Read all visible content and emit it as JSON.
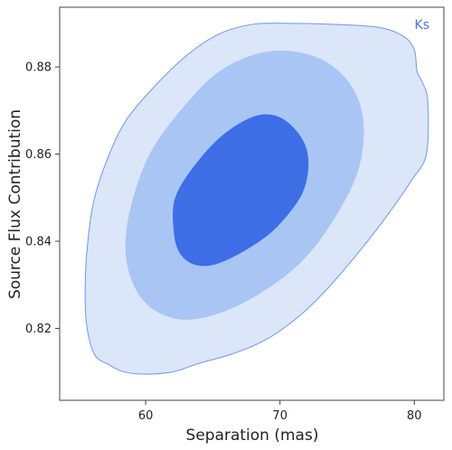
{
  "chart_data": {
    "type": "contour",
    "xlabel": "Separation (mas)",
    "ylabel": "Source Flux Contribution",
    "xlim": [
      53.6,
      82.2
    ],
    "ylim": [
      0.8035,
      0.8937
    ],
    "xticks": [
      60,
      70,
      80
    ],
    "yticks": [
      0.82,
      0.84,
      0.86,
      0.88
    ],
    "grid": false,
    "legend": {
      "position": "top-right",
      "label": "Ks"
    },
    "colors": {
      "outer_fill": "#dbe6f9",
      "middle_fill": "#a9c5f3",
      "inner_fill": "#3d6ee6",
      "outline": "#6f97e8",
      "label": "#4a74d6",
      "axis": "#444444"
    },
    "contours": [
      {
        "level": "outer",
        "points": [
          [
            57.3,
            0.8116
          ],
          [
            56.2,
            0.814
          ],
          [
            55.6,
            0.821
          ],
          [
            55.5,
            0.83
          ],
          [
            55.7,
            0.84
          ],
          [
            56.2,
            0.85
          ],
          [
            57.3,
            0.86
          ],
          [
            58.6,
            0.868
          ],
          [
            60.8,
            0.876
          ],
          [
            63.2,
            0.883
          ],
          [
            65.5,
            0.8876
          ],
          [
            68.0,
            0.8898
          ],
          [
            71.0,
            0.89
          ],
          [
            74.5,
            0.8897
          ],
          [
            77.5,
            0.889
          ],
          [
            79.2,
            0.887
          ],
          [
            80.0,
            0.884
          ],
          [
            80.2,
            0.879
          ],
          [
            80.6,
            0.8765
          ],
          [
            81.0,
            0.872
          ],
          [
            80.9,
            0.86
          ],
          [
            79.8,
            0.854
          ],
          [
            78.0,
            0.846
          ],
          [
            76.0,
            0.838
          ],
          [
            73.5,
            0.829
          ],
          [
            71.5,
            0.823
          ],
          [
            69.0,
            0.8175
          ],
          [
            66.5,
            0.8142
          ],
          [
            64.0,
            0.812
          ],
          [
            62.0,
            0.81
          ],
          [
            59.8,
            0.8095
          ],
          [
            58.3,
            0.8101
          ]
        ]
      },
      {
        "level": "middle",
        "points": [
          [
            58.5,
            0.838
          ],
          [
            58.9,
            0.848
          ],
          [
            60.3,
            0.86
          ],
          [
            62.6,
            0.87
          ],
          [
            65.5,
            0.879
          ],
          [
            69.0,
            0.8835
          ],
          [
            72.5,
            0.8825
          ],
          [
            75.0,
            0.877
          ],
          [
            76.2,
            0.868
          ],
          [
            75.8,
            0.856
          ],
          [
            73.8,
            0.844
          ],
          [
            71.5,
            0.835
          ],
          [
            68.5,
            0.828
          ],
          [
            65.5,
            0.8235
          ],
          [
            62.8,
            0.822
          ],
          [
            60.5,
            0.8245
          ],
          [
            59.1,
            0.83
          ]
        ]
      },
      {
        "level": "inner",
        "points": [
          [
            62.1,
            0.842
          ],
          [
            62.2,
            0.85
          ],
          [
            63.8,
            0.858
          ],
          [
            66.0,
            0.865
          ],
          [
            68.5,
            0.869
          ],
          [
            70.5,
            0.8675
          ],
          [
            72.0,
            0.861
          ],
          [
            71.8,
            0.852
          ],
          [
            70.0,
            0.844
          ],
          [
            68.0,
            0.839
          ],
          [
            65.5,
            0.835
          ],
          [
            63.8,
            0.8345
          ],
          [
            62.6,
            0.837
          ]
        ]
      }
    ]
  }
}
